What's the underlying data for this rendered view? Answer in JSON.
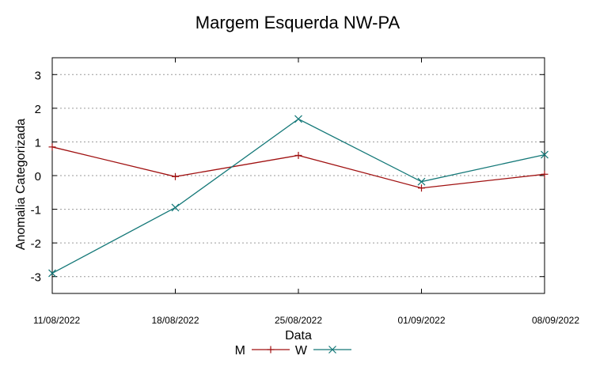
{
  "chart_data": {
    "type": "line",
    "title": "Margem Esquerda NW-PA",
    "xlabel": "Data",
    "ylabel": "Anomalia Categorizada",
    "categories": [
      "11/08/2022",
      "18/08/2022",
      "25/08/2022",
      "01/09/2022",
      "08/09/2022"
    ],
    "ylim": [
      -3.5,
      3.5
    ],
    "yticks": [
      -3,
      -2,
      -1,
      0,
      1,
      2,
      3
    ],
    "grid": true,
    "legend_position": "bottom-center",
    "series": [
      {
        "name": "M",
        "marker": "+",
        "color": "#a01010",
        "values": [
          0.85,
          -0.03,
          0.6,
          -0.37,
          0.04
        ]
      },
      {
        "name": "W",
        "marker": "x",
        "color": "#147878",
        "values": [
          -2.9,
          -0.95,
          1.68,
          -0.18,
          0.62
        ]
      }
    ]
  }
}
